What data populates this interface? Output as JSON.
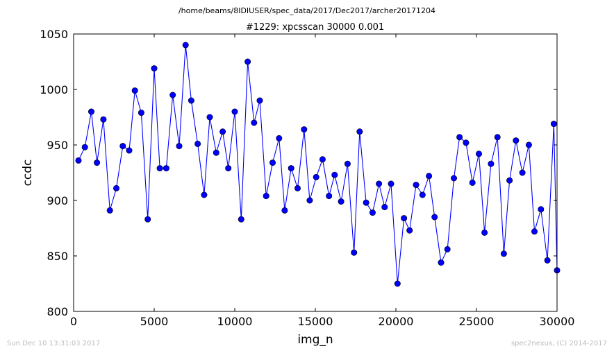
{
  "suptitle": "/home/beams/8IDIUSER/spec_data/2017/Dec2017/archer20171204",
  "footer": {
    "left": "Sun Dec 10 13:31:03 2017",
    "right": "spec2nexus, (C) 2014-2017"
  },
  "chart_data": {
    "type": "line",
    "title": "#1229: xpcsscan 30000 0.001",
    "xlabel": "img_n",
    "ylabel": "ccdc",
    "xlim": [
      0,
      30000
    ],
    "ylim": [
      800,
      1050
    ],
    "xticks": [
      0,
      5000,
      10000,
      15000,
      20000,
      25000,
      30000
    ],
    "yticks": [
      800,
      850,
      900,
      950,
      1000,
      1050
    ],
    "grid": false,
    "marker": "circle",
    "color": "#0000ff",
    "series": [
      {
        "x": [
          300,
          700,
          1100,
          1450,
          1850,
          2250,
          2650,
          3050,
          3450,
          3800,
          4200,
          4600,
          5000,
          5350,
          5750,
          6150,
          6550,
          6950,
          7300,
          7700,
          8100,
          8450,
          8850,
          9250,
          9600,
          10000,
          10400,
          10800,
          11200,
          11550,
          11950,
          12350,
          12750,
          13100,
          13500,
          13900,
          14300,
          14650,
          15050,
          15450,
          15850,
          16200,
          16600,
          17000,
          17400,
          17750,
          18150,
          18550,
          18950,
          19300,
          19700,
          20100,
          20500,
          20850,
          21250,
          21650,
          22050,
          22400,
          22800,
          23200,
          23600,
          23950,
          24350,
          24750,
          25150,
          25500,
          25900,
          26300,
          26700,
          27050,
          27450,
          27850,
          28250,
          28600,
          29000,
          29400,
          29800,
          30000
        ],
        "values": [
          936,
          948,
          980,
          934,
          973,
          891,
          911,
          949,
          945,
          999,
          979,
          883,
          1019,
          929,
          929,
          995,
          949,
          1040,
          990,
          951,
          905,
          975,
          943,
          962,
          929,
          980,
          883,
          1025,
          970,
          990,
          904,
          934,
          956,
          891,
          929,
          911,
          964,
          900,
          921,
          937,
          904,
          923,
          899,
          933,
          853,
          962,
          898,
          889,
          915,
          894,
          915,
          825,
          884,
          873,
          914,
          905,
          922,
          885,
          844,
          856,
          920,
          957,
          952,
          916,
          942,
          871,
          933,
          957,
          852,
          918,
          954,
          925,
          950,
          872,
          892,
          846,
          969,
          837
        ]
      }
    ]
  }
}
